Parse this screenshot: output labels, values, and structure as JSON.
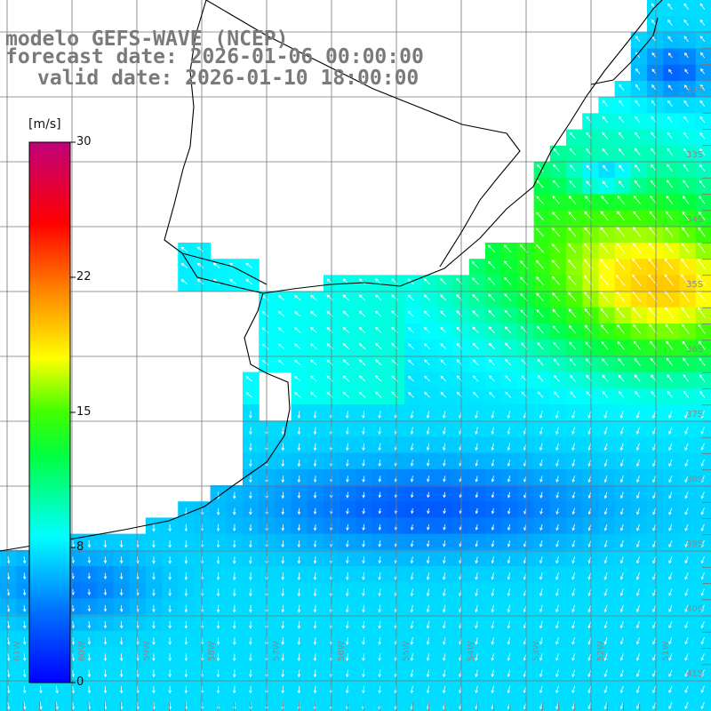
{
  "header": {
    "line1": "modelo GEFS-WAVE (NCEP)",
    "line2": "forecast date: 2026-01-06 00:00:00",
    "line3": "valid date: 2026-01-10 18:00:00"
  },
  "colorbar": {
    "unit": "[m/s]",
    "ticks": [
      "30",
      "22",
      "15",
      "8",
      "0"
    ],
    "colors": [
      "#0000ff",
      "#00a0ff",
      "#00ffff",
      "#00ff00",
      "#ffff00",
      "#ff8000",
      "#ff0000",
      "#c0007a"
    ]
  },
  "graticule": {
    "lat_labels": [
      "32S",
      "33S",
      "34S",
      "35S",
      "36S",
      "37S",
      "38S",
      "39S",
      "40S",
      "41S"
    ],
    "lon_labels": [
      "61W",
      "60W",
      "59W",
      "58W",
      "57W",
      "56W",
      "55W",
      "54W",
      "53W",
      "52W",
      "51W"
    ]
  },
  "chart_data": {
    "type": "heatmap",
    "field": "wind speed with direction arrows",
    "unit": "m/s",
    "scale_range": [
      0,
      30
    ],
    "lon_range": [
      -62,
      -51
    ],
    "lat_range": [
      -31,
      -41
    ],
    "regions": [
      {
        "area": "northeast offshore",
        "speed_approx": 13
      },
      {
        "area": "east offshore near 35S",
        "speed_approx": 16
      },
      {
        "area": "south-central near 39S",
        "speed_approx": 3
      },
      {
        "area": "southwest near 40S",
        "speed_approx": 4
      },
      {
        "area": "river estuary",
        "speed_approx": 7
      }
    ]
  }
}
